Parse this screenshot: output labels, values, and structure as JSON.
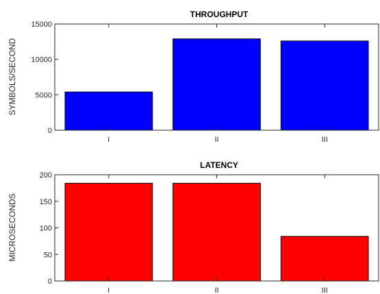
{
  "chart_data": [
    {
      "type": "bar",
      "title": "THROUGHPUT",
      "xlabel": "",
      "ylabel": "SYMBOLS/SECOND",
      "categories": [
        "I",
        "II",
        "III"
      ],
      "values": [
        5400,
        12900,
        12600
      ],
      "ylim": [
        0,
        15000
      ],
      "yticks": [
        0,
        5000,
        10000,
        15000
      ],
      "bar_color": "#0000ff",
      "grid": false
    },
    {
      "type": "bar",
      "title": "LATENCY",
      "xlabel": "",
      "ylabel": "MICROSECONDS",
      "categories": [
        "I",
        "II",
        "III"
      ],
      "values": [
        184,
        184,
        84
      ],
      "ylim": [
        0,
        200
      ],
      "yticks": [
        0,
        50,
        100,
        150,
        200
      ],
      "bar_color": "#ff0000",
      "grid": false
    }
  ]
}
